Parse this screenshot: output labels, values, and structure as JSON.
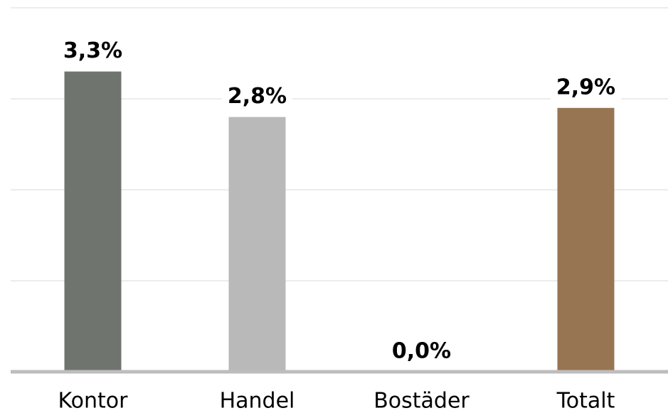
{
  "chart_data": {
    "type": "bar",
    "categories": [
      "Kontor",
      "Handel",
      "Bostäder",
      "Totalt"
    ],
    "values": [
      3.3,
      2.8,
      0.0,
      2.9
    ],
    "value_labels": [
      "3,3%",
      "2,8%",
      "0,0%",
      "2,9%"
    ],
    "colors": [
      "#6f746f",
      "#b8b9b8",
      "#a0a0a0",
      "#977553"
    ],
    "ylim": [
      0,
      4
    ],
    "yticks": [
      0,
      1,
      2,
      3,
      4
    ],
    "grid": true
  }
}
